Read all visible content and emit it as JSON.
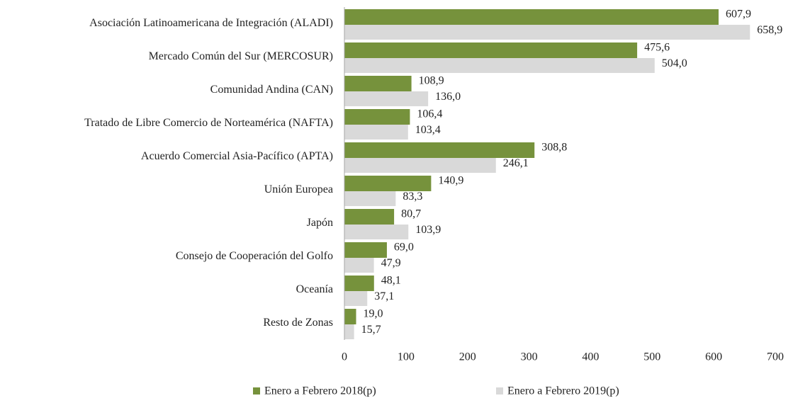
{
  "chart_data": {
    "type": "bar",
    "orientation": "horizontal",
    "categories": [
      "Asociación Latinoamericana de Integración (ALADI)",
      "Mercado Común del Sur (MERCOSUR)",
      "Comunidad Andina (CAN)",
      "Tratado de Libre Comercio de Norteamérica (NAFTA)",
      "Acuerdo Comercial Asia-Pacífico (APTA)",
      "Unión Europea",
      "Japón",
      "Consejo de Cooperación del Golfo",
      "Oceanía",
      "Resto de Zonas"
    ],
    "series": [
      {
        "name": "Enero a Febrero 2018(p)",
        "color": "#76923c",
        "values": [
          607.9,
          475.6,
          108.9,
          106.4,
          308.8,
          140.9,
          80.7,
          69.0,
          48.1,
          19.0
        ],
        "value_labels": [
          "607,9",
          "475,6",
          "108,9",
          "106,4",
          "308,8",
          "140,9",
          "80,7",
          "69,0",
          "48,1",
          "19,0"
        ]
      },
      {
        "name": "Enero a Febrero 2019(p)",
        "color": "#d9d9d9",
        "values": [
          658.9,
          504.0,
          136.0,
          103.4,
          246.1,
          83.3,
          103.9,
          47.9,
          37.1,
          15.7
        ],
        "value_labels": [
          "658,9",
          "504,0",
          "136,0",
          "103,4",
          "246,1",
          "83,3",
          "103,9",
          "47,9",
          "37,1",
          "15,7"
        ]
      }
    ],
    "xlim": [
      0,
      700
    ],
    "xticks": [
      0,
      100,
      200,
      300,
      400,
      500,
      600,
      700
    ],
    "legend": "bottom"
  }
}
